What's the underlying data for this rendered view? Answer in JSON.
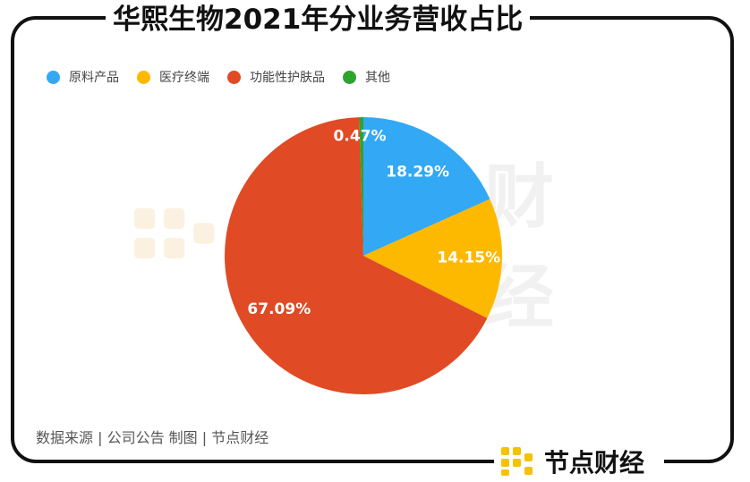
{
  "title": "华熙生物2021年分业务营收占比",
  "source": "数据来源 | 公司公告  制图 | 节点财经",
  "brand": "节点财经",
  "watermark": "财经",
  "colors": {
    "accent": "#F5C200"
  },
  "chart_data": {
    "type": "pie",
    "title": "华熙生物2021年分业务营收占比",
    "legend_position": "top-left",
    "series": [
      {
        "name": "原料产品",
        "value": 18.29,
        "label": "18.29%",
        "color": "#33A8F5"
      },
      {
        "name": "医疗终端",
        "value": 14.15,
        "label": "14.15%",
        "color": "#FDB900"
      },
      {
        "name": "功能性护肤品",
        "value": 67.09,
        "label": "67.09%",
        "color": "#E04A24"
      },
      {
        "name": "其他",
        "value": 0.47,
        "label": "0.47%",
        "color": "#2EA32E"
      }
    ]
  }
}
